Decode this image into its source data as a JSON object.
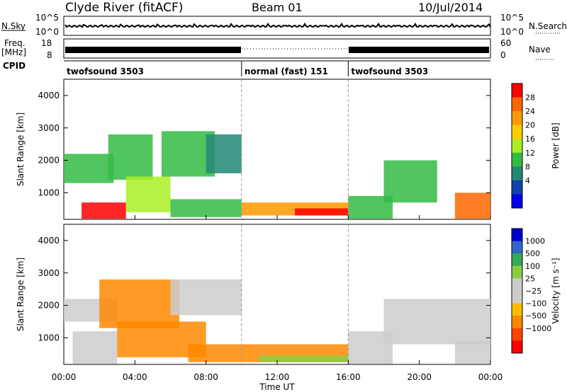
{
  "header": {
    "station": "Clyde River (fitACF)",
    "beam": "Beam 01",
    "date": "10/Jul/2014"
  },
  "status_panels": {
    "nsky_label": "N.Sky",
    "nsky_top": "10^5",
    "nsky_bottom": "10^0",
    "nsearch_label": "N.Search",
    "nsearch_top": "10^5",
    "nsearch_bottom": "10^0",
    "freq_label": "Freq.",
    "freq_unit": "[MHz]",
    "freq_top": "18",
    "freq_bottom": "8",
    "nave_label": "Nave",
    "nave_top": "60",
    "nave_bottom": "0",
    "cpid_label": "CPID"
  },
  "cpid_segments": [
    {
      "label": "twofsound 3503",
      "start_hour": 0,
      "end_hour": 10
    },
    {
      "label": "normal (fast) 151",
      "start_hour": 10,
      "end_hour": 16
    },
    {
      "label": "twofsound 3503",
      "start_hour": 16,
      "end_hour": 24
    }
  ],
  "chart_data": [
    {
      "type": "heatmap",
      "name": "power",
      "xlabel": "Time UT",
      "ylabel": "Slant Range [km]",
      "xlim": [
        0,
        24
      ],
      "ylim": [
        180,
        4500
      ],
      "x_ticks": [
        "00:00",
        "04:00",
        "08:00",
        "12:00",
        "16:00",
        "20:00",
        "00:00"
      ],
      "y_ticks": [
        1000,
        2000,
        3000,
        4000
      ],
      "colorbar_label": "Power [dB]",
      "colorbar_ticks": [
        "28",
        "24",
        "20",
        "16",
        "12",
        "8",
        "4"
      ],
      "colorbar_colors": [
        "#ff0000",
        "#ff6600",
        "#ff9900",
        "#ffcc00",
        "#aaee22",
        "#33bb44",
        "#228877",
        "#1144aa",
        "#0000ee"
      ],
      "regions": [
        {
          "t": [
            0.0,
            2.8
          ],
          "r": [
            1300,
            2200
          ],
          "level": 5
        },
        {
          "t": [
            1.0,
            3.5
          ],
          "r": [
            200,
            700
          ],
          "level": 0
        },
        {
          "t": [
            2.5,
            5.0
          ],
          "r": [
            1400,
            2800
          ],
          "level": 5
        },
        {
          "t": [
            3.5,
            6.0
          ],
          "r": [
            400,
            1500
          ],
          "level": 4
        },
        {
          "t": [
            5.5,
            8.5
          ],
          "r": [
            1500,
            2900
          ],
          "level": 5
        },
        {
          "t": [
            6.0,
            10.0
          ],
          "r": [
            250,
            800
          ],
          "level": 5
        },
        {
          "t": [
            8.0,
            10.0
          ],
          "r": [
            1600,
            2800
          ],
          "level": 6
        },
        {
          "t": [
            10.0,
            16.0
          ],
          "r": [
            300,
            700
          ],
          "level": 2
        },
        {
          "t": [
            13.0,
            16.0
          ],
          "r": [
            300,
            520
          ],
          "level": 0
        },
        {
          "t": [
            16.0,
            18.5
          ],
          "r": [
            200,
            900
          ],
          "level": 5
        },
        {
          "t": [
            18.0,
            21.0
          ],
          "r": [
            700,
            2000
          ],
          "level": 5
        },
        {
          "t": [
            22.0,
            24.0
          ],
          "r": [
            200,
            1000
          ],
          "level": 1
        }
      ]
    },
    {
      "type": "heatmap",
      "name": "velocity",
      "xlabel": "Time UT",
      "ylabel": "Slant Range [km]",
      "xlim": [
        0,
        24
      ],
      "ylim": [
        180,
        4500
      ],
      "x_ticks": [
        "00:00",
        "04:00",
        "08:00",
        "12:00",
        "16:00",
        "20:00",
        "00:00"
      ],
      "y_ticks": [
        1000,
        2000,
        3000,
        4000
      ],
      "colorbar_label": "Velocity [m s⁻¹]",
      "colorbar_ticks": [
        "1000",
        "500",
        "100",
        "25",
        "−25",
        "−100",
        "−500",
        "−1000"
      ],
      "colorbar_colors": [
        "#0000cc",
        "#3366cc",
        "#33aa55",
        "#88cc44",
        "#cccccc",
        "#cccccc",
        "#ffbb00",
        "#ff8800",
        "#ff4400",
        "#ff0000"
      ],
      "regions": [
        {
          "t": [
            0.0,
            3.0
          ],
          "r": [
            1500,
            2200
          ],
          "level": 4
        },
        {
          "t": [
            0.5,
            3.0
          ],
          "r": [
            200,
            1200
          ],
          "level": 4
        },
        {
          "t": [
            2.0,
            6.5
          ],
          "r": [
            1300,
            2800
          ],
          "level": 7
        },
        {
          "t": [
            3.0,
            8.0
          ],
          "r": [
            400,
            1500
          ],
          "level": 7
        },
        {
          "t": [
            6.0,
            10.0
          ],
          "r": [
            1700,
            2800
          ],
          "level": 4
        },
        {
          "t": [
            7.0,
            16.0
          ],
          "r": [
            250,
            800
          ],
          "level": 7
        },
        {
          "t": [
            11.0,
            16.0
          ],
          "r": [
            250,
            450
          ],
          "level": 3
        },
        {
          "t": [
            16.0,
            18.5
          ],
          "r": [
            200,
            1200
          ],
          "level": 5
        },
        {
          "t": [
            18.0,
            24.0
          ],
          "r": [
            800,
            2200
          ],
          "level": 4
        },
        {
          "t": [
            22.0,
            24.0
          ],
          "r": [
            200,
            900
          ],
          "level": 4
        }
      ]
    }
  ]
}
